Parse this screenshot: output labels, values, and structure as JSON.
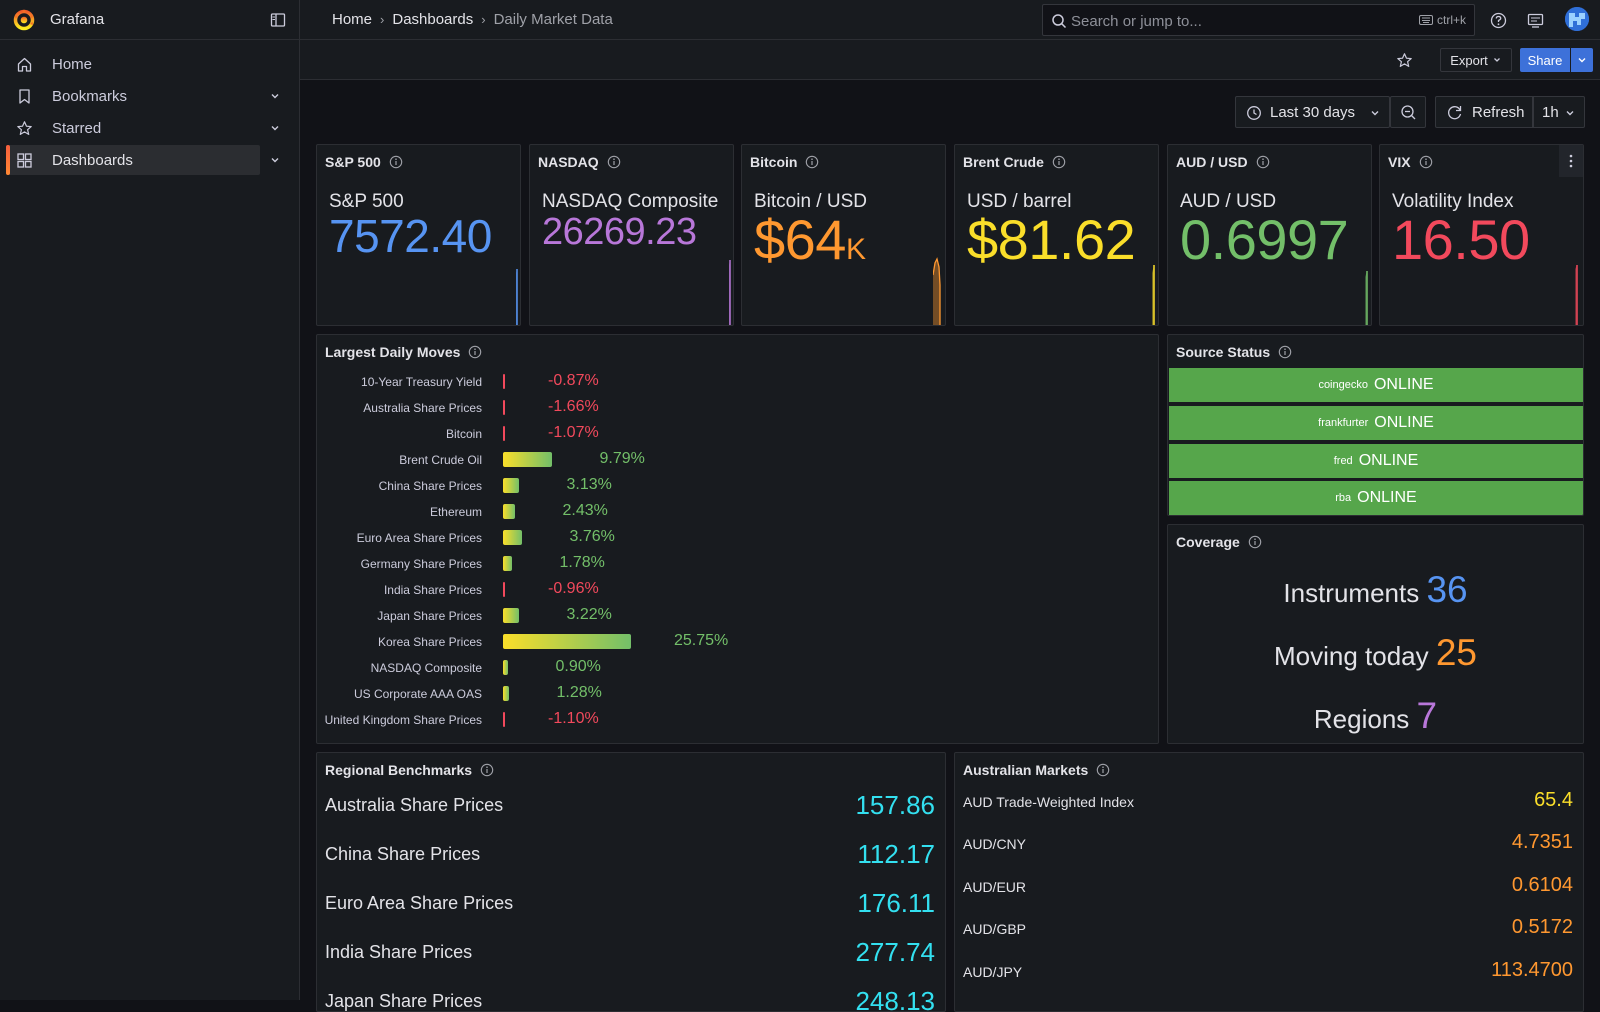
{
  "app": {
    "name": "Grafana"
  },
  "breadcrumb": [
    "Home",
    "Dashboards",
    "Daily Market Data"
  ],
  "search": {
    "placeholder": "Search or jump to...",
    "shortcut": "ctrl+k"
  },
  "sidebar": {
    "items": [
      {
        "label": "Home",
        "icon": "home-icon",
        "active": false,
        "expandable": false
      },
      {
        "label": "Bookmarks",
        "icon": "bookmark-icon",
        "active": false,
        "expandable": true
      },
      {
        "label": "Starred",
        "icon": "star-icon",
        "active": false,
        "expandable": true
      },
      {
        "label": "Dashboards",
        "icon": "dashboards-grid-icon",
        "active": true,
        "expandable": true
      }
    ]
  },
  "toolbar": {
    "export_label": "Export",
    "share_label": "Share"
  },
  "controls": {
    "time_range": "Last 30 days",
    "refresh_label": "Refresh",
    "refresh_interval": "1h"
  },
  "colors": {
    "blue": "#5794f2",
    "purple": "#b877d9",
    "orange": "#ff9830",
    "yellow": "#fade2a",
    "green": "#73bf69",
    "red": "#f2495c",
    "cyan": "#33e0f0",
    "status_ok": "#56a64b"
  },
  "stats": [
    {
      "title": "S&P 500",
      "name": "S&P 500",
      "value": "7572.40",
      "suffix": "",
      "color": "#5794f2"
    },
    {
      "title": "NASDAQ",
      "name": "NASDAQ Composite",
      "value": "26269.23",
      "suffix": "",
      "color": "#b877d9"
    },
    {
      "title": "Bitcoin",
      "name": "Bitcoin / USD",
      "value": "$64",
      "suffix": "K",
      "color": "#ff9830"
    },
    {
      "title": "Brent Crude",
      "name": "USD / barrel",
      "value": "$81.62",
      "suffix": "",
      "color": "#fade2a"
    },
    {
      "title": "AUD / USD",
      "name": "AUD / USD",
      "value": "0.6997",
      "suffix": "",
      "color": "#73bf69"
    },
    {
      "title": "VIX",
      "name": "Volatility Index",
      "value": "16.50",
      "suffix": "",
      "color": "#f2495c"
    }
  ],
  "moves": {
    "title": "Largest Daily Moves",
    "rows": [
      {
        "label": "10-Year Treasury Yield",
        "value": -0.87,
        "text": "-0.87%"
      },
      {
        "label": "Australia Share Prices",
        "value": -1.66,
        "text": "-1.66%"
      },
      {
        "label": "Bitcoin",
        "value": -1.07,
        "text": "-1.07%"
      },
      {
        "label": "Brent Crude Oil",
        "value": 9.79,
        "text": "9.79%"
      },
      {
        "label": "China Share Prices",
        "value": 3.13,
        "text": "3.13%"
      },
      {
        "label": "Ethereum",
        "value": 2.43,
        "text": "2.43%"
      },
      {
        "label": "Euro Area Share Prices",
        "value": 3.76,
        "text": "3.76%"
      },
      {
        "label": "Germany Share Prices",
        "value": 1.78,
        "text": "1.78%"
      },
      {
        "label": "India Share Prices",
        "value": -0.96,
        "text": "-0.96%"
      },
      {
        "label": "Japan Share Prices",
        "value": 3.22,
        "text": "3.22%"
      },
      {
        "label": "Korea Share Prices",
        "value": 25.75,
        "text": "25.75%"
      },
      {
        "label": "NASDAQ Composite",
        "value": 0.9,
        "text": "0.90%"
      },
      {
        "label": "US Corporate AAA OAS",
        "value": 1.28,
        "text": "1.28%"
      },
      {
        "label": "United Kingdom Share Prices",
        "value": -1.1,
        "text": "-1.10%"
      }
    ]
  },
  "source_status": {
    "title": "Source Status",
    "rows": [
      {
        "name": "coingecko",
        "status": "ONLINE"
      },
      {
        "name": "frankfurter",
        "status": "ONLINE"
      },
      {
        "name": "fred",
        "status": "ONLINE"
      },
      {
        "name": "rba",
        "status": "ONLINE"
      }
    ]
  },
  "coverage": {
    "title": "Coverage",
    "rows": [
      {
        "label": "Instruments",
        "value": "36",
        "color": "#5794f2"
      },
      {
        "label": "Moving today",
        "value": "25",
        "color": "#ff9830"
      },
      {
        "label": "Regions",
        "value": "7",
        "color": "#b877d9"
      }
    ]
  },
  "benchmarks": {
    "title": "Regional Benchmarks",
    "rows": [
      {
        "label": "Australia Share Prices",
        "value": "157.86"
      },
      {
        "label": "China Share Prices",
        "value": "112.17"
      },
      {
        "label": "Euro Area Share Prices",
        "value": "176.11"
      },
      {
        "label": "India Share Prices",
        "value": "277.74"
      },
      {
        "label": "Japan Share Prices",
        "value": "248.13"
      }
    ]
  },
  "australian": {
    "title": "Australian Markets",
    "rows": [
      {
        "label": "AUD Trade-Weighted Index",
        "value": "65.4",
        "color": "#fade2a"
      },
      {
        "label": "AUD/CNY",
        "value": "4.7351",
        "color": "#ff9830"
      },
      {
        "label": "AUD/EUR",
        "value": "0.6104",
        "color": "#ff9830"
      },
      {
        "label": "AUD/GBP",
        "value": "0.5172",
        "color": "#ff9830"
      },
      {
        "label": "AUD/JPY",
        "value": "113.4700",
        "color": "#ff9830"
      }
    ]
  }
}
